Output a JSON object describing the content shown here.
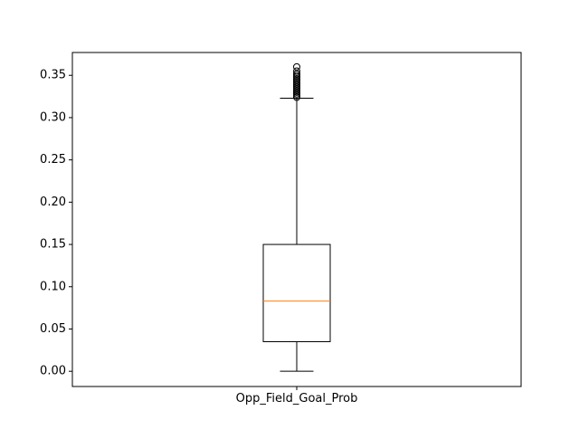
{
  "chart_data": {
    "type": "box",
    "categories": [
      "Opp_Field_Goal_Prob"
    ],
    "series": [
      {
        "whisker_low": 0.0,
        "q1": 0.035,
        "median": 0.083,
        "q3": 0.15,
        "whisker_high": 0.323,
        "outliers": [
          0.324,
          0.326,
          0.328,
          0.33,
          0.332,
          0.334,
          0.336,
          0.338,
          0.34,
          0.342,
          0.344,
          0.346,
          0.348,
          0.35,
          0.352,
          0.355,
          0.36
        ]
      }
    ],
    "ylim": [
      -0.018,
      0.377
    ],
    "yticks": [
      0.0,
      0.05,
      0.1,
      0.15,
      0.2,
      0.25,
      0.3,
      0.35
    ],
    "ytick_labels": [
      "0.00",
      "0.05",
      "0.10",
      "0.15",
      "0.20",
      "0.25",
      "0.30",
      "0.35"
    ],
    "grid": false,
    "colors": {
      "box": "#000000",
      "median": "#ff7f0e",
      "outlier": "#000000"
    }
  }
}
